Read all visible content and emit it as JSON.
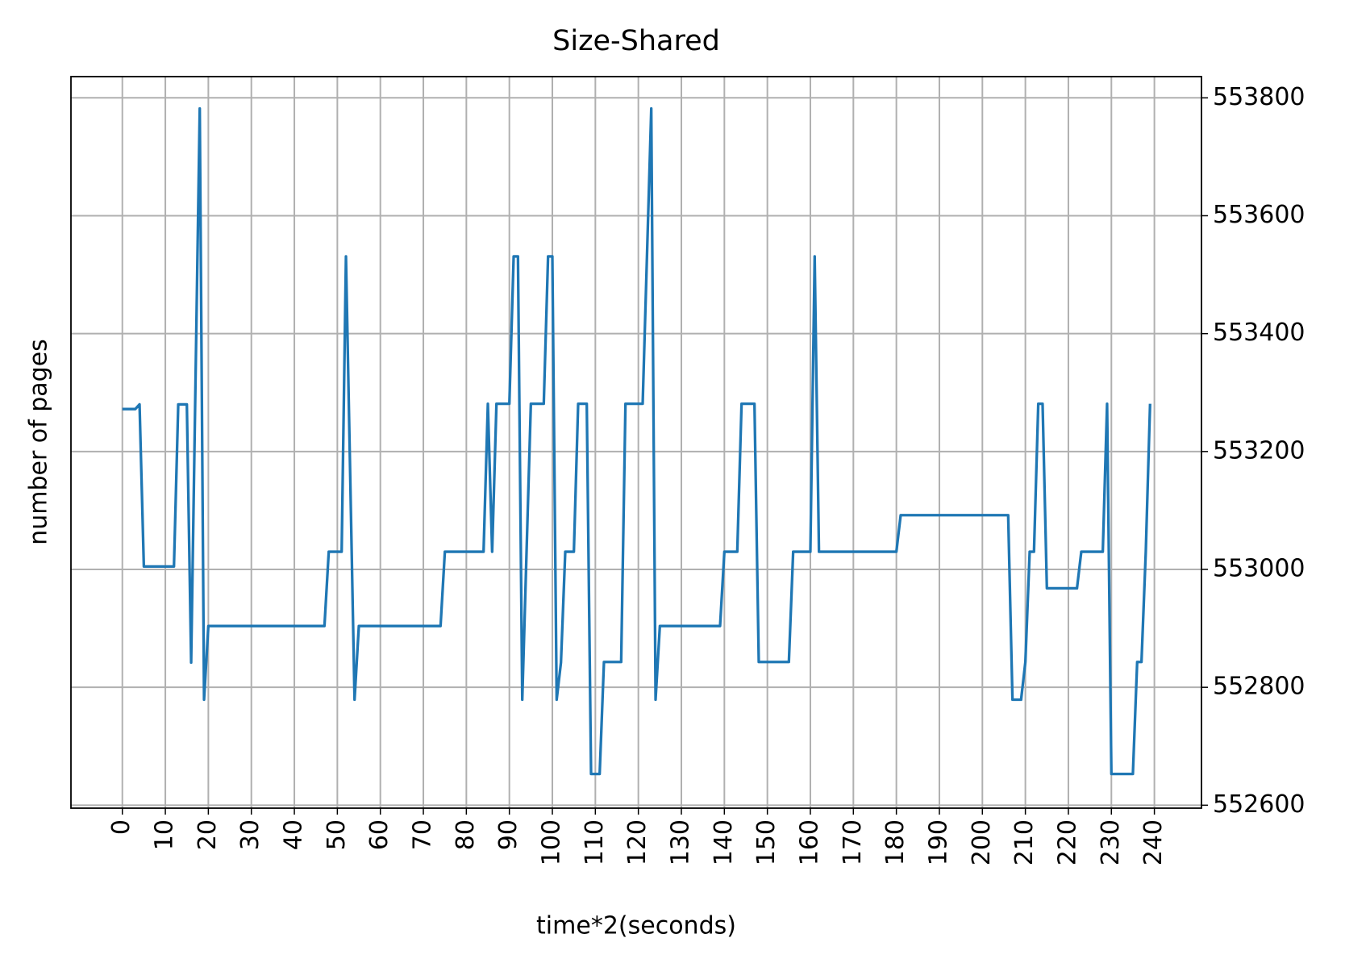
{
  "chart_data": {
    "type": "line",
    "title": "Size-Shared",
    "xlabel": "time*2(seconds)",
    "ylabel": "number of pages",
    "x": [
      0,
      1,
      2,
      3,
      4,
      5,
      6,
      7,
      8,
      9,
      10,
      11,
      12,
      13,
      14,
      15,
      16,
      17,
      18,
      19,
      20,
      21,
      22,
      23,
      24,
      25,
      26,
      27,
      28,
      29,
      30,
      31,
      32,
      33,
      34,
      35,
      36,
      37,
      38,
      39,
      40,
      41,
      42,
      43,
      44,
      45,
      46,
      47,
      48,
      49,
      50,
      51,
      52,
      53,
      54,
      55,
      56,
      57,
      58,
      59,
      60,
      61,
      62,
      63,
      64,
      65,
      66,
      67,
      68,
      69,
      70,
      71,
      72,
      73,
      74,
      75,
      76,
      77,
      78,
      79,
      80,
      81,
      82,
      83,
      84,
      85,
      86,
      87,
      88,
      89,
      90,
      91,
      92,
      93,
      94,
      95,
      96,
      97,
      98,
      99,
      100,
      101,
      102,
      103,
      104,
      105,
      106,
      107,
      108,
      109,
      110,
      111,
      112,
      113,
      114,
      115,
      116,
      117,
      118,
      119,
      120,
      121,
      122,
      123,
      124,
      125,
      126,
      127,
      128,
      129,
      130,
      131,
      132,
      133,
      134,
      135,
      136,
      137,
      138,
      139,
      140,
      141,
      142,
      143,
      144,
      145,
      146,
      147,
      148,
      149,
      150,
      151,
      152,
      153,
      154,
      155,
      156,
      157,
      158,
      159,
      160,
      161,
      162,
      163,
      164,
      165,
      166,
      167,
      168,
      169,
      170,
      171,
      172,
      173,
      174,
      175,
      176,
      177,
      178,
      179,
      180,
      181,
      182,
      183,
      184,
      185,
      186,
      187,
      188,
      189,
      190,
      191,
      192,
      193,
      194,
      195,
      196,
      197,
      198,
      199,
      200,
      201,
      202,
      203,
      204,
      205,
      206,
      207,
      208,
      209,
      210,
      211,
      212,
      213,
      214,
      215,
      216,
      217,
      218,
      219,
      220,
      221,
      222,
      223,
      224,
      225,
      226,
      227,
      228,
      229,
      230,
      231,
      232,
      233,
      234,
      235,
      236,
      237,
      238,
      239
    ],
    "series": [
      {
        "name": "Size-Shared",
        "color": "#1f77b4",
        "values": [
          553272,
          553272,
          553272,
          553272,
          553280,
          553005,
          553005,
          553005,
          553005,
          553005,
          553005,
          553005,
          553005,
          553280,
          553280,
          553280,
          552842,
          553312,
          553782,
          552779,
          552904,
          552904,
          552904,
          552904,
          552904,
          552904,
          552904,
          552904,
          552904,
          552904,
          552904,
          552904,
          552904,
          552904,
          552904,
          552904,
          552904,
          552904,
          552904,
          552904,
          552904,
          552904,
          552904,
          552904,
          552904,
          552904,
          552904,
          552904,
          553030,
          553030,
          553030,
          553030,
          553531,
          553155,
          552779,
          552904,
          552904,
          552904,
          552904,
          552904,
          552904,
          552904,
          552904,
          552904,
          552904,
          552904,
          552904,
          552904,
          552904,
          552904,
          552904,
          552904,
          552904,
          552904,
          552904,
          553030,
          553030,
          553030,
          553030,
          553030,
          553030,
          553030,
          553030,
          553030,
          553030,
          553281,
          553030,
          553281,
          553281,
          553281,
          553281,
          553531,
          553531,
          552779,
          553030,
          553281,
          553281,
          553281,
          553281,
          553531,
          553531,
          552779,
          552842,
          553030,
          553030,
          553030,
          553281,
          553281,
          553281,
          552653,
          552653,
          552653,
          552843,
          552843,
          552843,
          552843,
          552843,
          553281,
          553281,
          553281,
          553281,
          553281,
          553531,
          553782,
          552779,
          552904,
          552904,
          552904,
          552904,
          552904,
          552904,
          552904,
          552904,
          552904,
          552904,
          552904,
          552904,
          552904,
          552904,
          552904,
          553030,
          553030,
          553030,
          553030,
          553281,
          553281,
          553281,
          553281,
          552843,
          552843,
          552843,
          552843,
          552843,
          552843,
          552843,
          552843,
          553030,
          553030,
          553030,
          553030,
          553030,
          553531,
          553030,
          553030,
          553030,
          553030,
          553030,
          553030,
          553030,
          553030,
          553030,
          553030,
          553030,
          553030,
          553030,
          553030,
          553030,
          553030,
          553030,
          553030,
          553030,
          553092,
          553092,
          553092,
          553092,
          553092,
          553092,
          553092,
          553092,
          553092,
          553092,
          553092,
          553092,
          553092,
          553092,
          553092,
          553092,
          553092,
          553092,
          553092,
          553092,
          553092,
          553092,
          553092,
          553092,
          553092,
          553092,
          552779,
          552779,
          552779,
          552843,
          553030,
          553030,
          553281,
          553281,
          552968,
          552968,
          552968,
          552968,
          552968,
          552968,
          552968,
          552968,
          553030,
          553030,
          553030,
          553030,
          553030,
          553030,
          553281,
          552653,
          552653,
          552653,
          552653,
          552653,
          552653,
          552843,
          552843,
          553030,
          553281
        ]
      }
    ],
    "xlim": [
      -11.95,
      250.95
    ],
    "ylim": [
      552595,
      553836
    ],
    "xticks": [
      0,
      10,
      20,
      30,
      40,
      50,
      60,
      70,
      80,
      90,
      100,
      110,
      120,
      130,
      140,
      150,
      160,
      170,
      180,
      190,
      200,
      210,
      220,
      230,
      240
    ],
    "yticks": [
      552600,
      552800,
      553000,
      553200,
      553400,
      553600,
      553800
    ],
    "grid": true,
    "y_axis_side": "right"
  }
}
